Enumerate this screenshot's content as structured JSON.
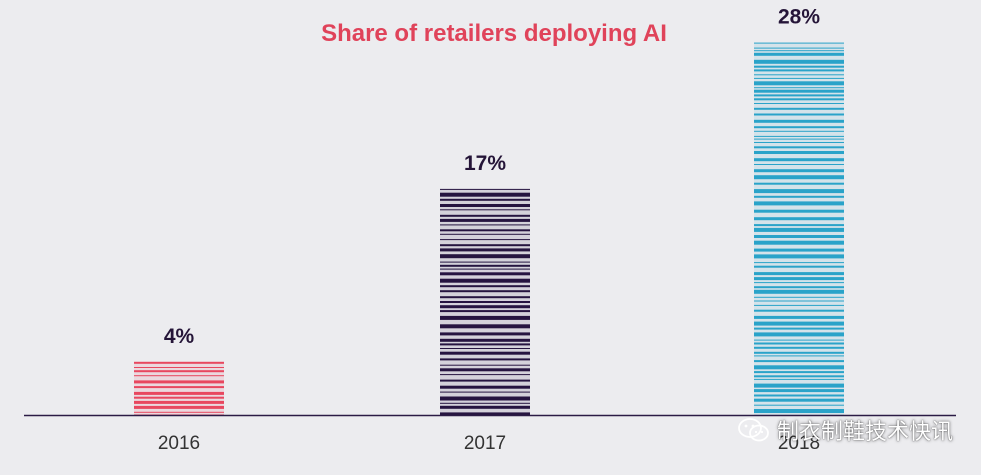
{
  "chart_data": {
    "type": "bar",
    "title": "Share of retailers deploying AI",
    "categories": [
      "2016",
      "2017",
      "2018"
    ],
    "values": [
      4,
      17,
      28
    ],
    "value_labels": [
      "4%",
      "17%",
      "28%"
    ],
    "ylim": [
      0,
      30
    ],
    "grid": false,
    "legend": "none",
    "colors": {
      "title": "#e0435a",
      "value_label": "#251538",
      "axis": "#2b1b45",
      "tick_label": "#333333",
      "bars": [
        "#e8475f",
        "#261440",
        "#2aa3c9"
      ]
    }
  },
  "watermark": {
    "text": "制衣制鞋技术快讯",
    "icon": "wechat-icon"
  }
}
